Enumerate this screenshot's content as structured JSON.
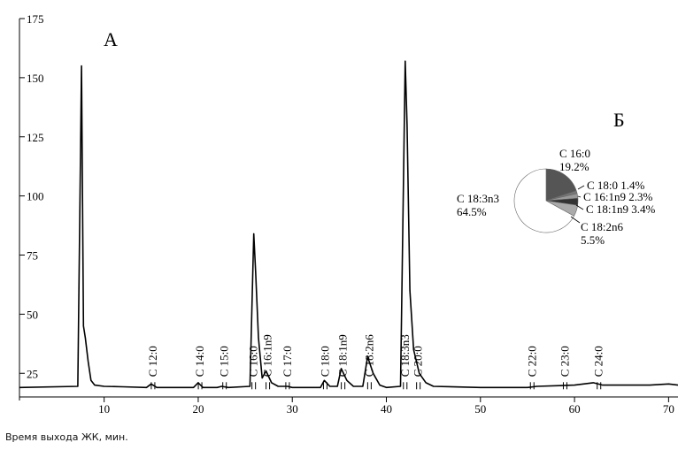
{
  "chart_data": [
    {
      "type": "line",
      "panel_label": "А",
      "xlabel": "Время выхода ЖК, мин.",
      "ylabel": "",
      "xlim": [
        1,
        71
      ],
      "ylim": [
        15,
        175
      ],
      "xticks": [
        10,
        20,
        30,
        40,
        50,
        60,
        70
      ],
      "yticks": [
        25,
        50,
        75,
        100,
        125,
        150,
        175
      ],
      "baseline": 19,
      "series": [
        {
          "values": [
            [
              1,
              19
            ],
            [
              7.2,
              19.5
            ],
            [
              7.6,
              155
            ],
            [
              7.8,
              45
            ],
            [
              8.0,
              40
            ],
            [
              8.3,
              30
            ],
            [
              8.6,
              22
            ],
            [
              9,
              20
            ],
            [
              10,
              19.5
            ],
            [
              12,
              19.3
            ],
            [
              14.5,
              19
            ],
            [
              15.0,
              20.5
            ],
            [
              15.6,
              19
            ],
            [
              19.5,
              19
            ],
            [
              20.0,
              21
            ],
            [
              20.5,
              19
            ],
            [
              22,
              19
            ],
            [
              22.5,
              19.5
            ],
            [
              23.2,
              19
            ],
            [
              25.5,
              19.5
            ],
            [
              25.9,
              84
            ],
            [
              26.1,
              68
            ],
            [
              26.4,
              40
            ],
            [
              26.8,
              23
            ],
            [
              27.2,
              26
            ],
            [
              27.8,
              21
            ],
            [
              28.5,
              19.5
            ],
            [
              29.5,
              19.5
            ],
            [
              30,
              19
            ],
            [
              33,
              19
            ],
            [
              33.4,
              22
            ],
            [
              34.0,
              19.5
            ],
            [
              34.8,
              19.5
            ],
            [
              35.2,
              27
            ],
            [
              35.8,
              22
            ],
            [
              36.5,
              19.5
            ],
            [
              37.5,
              19.5
            ],
            [
              38.0,
              32
            ],
            [
              38.6,
              25
            ],
            [
              39.3,
              20
            ],
            [
              40,
              19
            ],
            [
              41.5,
              19.5
            ],
            [
              42.0,
              157
            ],
            [
              42.2,
              130
            ],
            [
              42.5,
              60
            ],
            [
              42.9,
              35
            ],
            [
              43.5,
              25
            ],
            [
              44.2,
              21
            ],
            [
              45,
              19.5
            ],
            [
              50,
              19
            ],
            [
              55,
              19
            ],
            [
              56,
              19.5
            ],
            [
              60,
              20
            ],
            [
              62,
              21
            ],
            [
              63,
              20
            ],
            [
              65,
              20
            ],
            [
              68,
              20
            ],
            [
              70,
              20.5
            ],
            [
              71,
              20
            ]
          ]
        }
      ],
      "peaks": [
        {
          "label": "С 12:0",
          "x": 15.2
        },
        {
          "label": "С 14:0",
          "x": 20.2
        },
        {
          "label": "С 15:0",
          "x": 22.8
        },
        {
          "label": "С 16:0",
          "x": 25.9
        },
        {
          "label": "С 16:1n9",
          "x": 27.4
        },
        {
          "label": "С 17:0",
          "x": 29.5
        },
        {
          "label": "С 18:0",
          "x": 33.5
        },
        {
          "label": "С 18:1n9",
          "x": 35.4
        },
        {
          "label": "С 18:2n6",
          "x": 38.2
        },
        {
          "label": "С 18:3n3",
          "x": 42.0
        },
        {
          "label": "С 20:0",
          "x": 43.4
        },
        {
          "label": "С 22:0",
          "x": 55.5
        },
        {
          "label": "С 23:0",
          "x": 59.0
        },
        {
          "label": "С 24:0",
          "x": 62.6
        }
      ]
    },
    {
      "type": "pie",
      "panel_label": "Б",
      "slices": [
        {
          "name": "С 16:0",
          "value": 19.2,
          "pct": "19.2%",
          "color": "#555555"
        },
        {
          "name": "С 18:0",
          "value": 1.4,
          "pct": "1.4%",
          "color": "#777777"
        },
        {
          "name": "С 16:1n9",
          "value": 2.3,
          "pct": "2.3%",
          "color": "#999999"
        },
        {
          "name": "С 18:1n9",
          "value": 3.4,
          "pct": "3.4%",
          "color": "#333333"
        },
        {
          "name": "С 18:2n6",
          "value": 5.5,
          "pct": "5.5%",
          "color": "#aaaaaa"
        },
        {
          "name": "С 18:3n3",
          "value": 64.5,
          "pct": "64.5%",
          "color": "#ffffff"
        }
      ]
    }
  ]
}
